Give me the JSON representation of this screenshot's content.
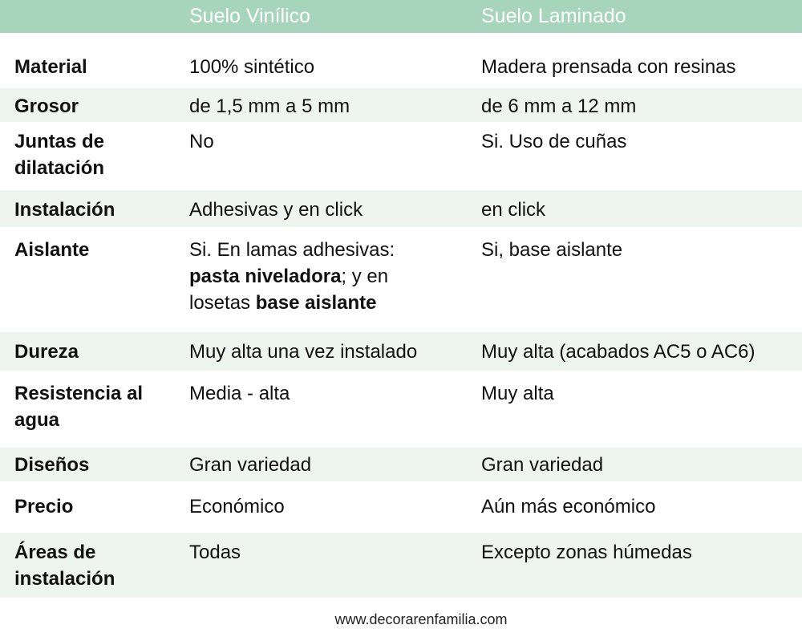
{
  "header": {
    "col1": "",
    "col2": "Suelo Vinílico",
    "col3": "Suelo Laminado"
  },
  "rows": [
    {
      "label": "Material",
      "vinilico": "100% sintético",
      "laminado": "Madera prensada con resinas"
    },
    {
      "label": "Grosor",
      "vinilico": "de 1,5 mm a 5 mm",
      "laminado": "de 6 mm a 12 mm"
    },
    {
      "label": "Juntas de dilatación",
      "vinilico": "No",
      "laminado": "Si. Uso de cuñas"
    },
    {
      "label": "Instalación",
      "vinilico": "Adhesivas y en click",
      "laminado": "en click"
    },
    {
      "label": "Aislante",
      "vinilico_parts": [
        "Si. En lamas adhesivas: ",
        "pasta niveladora",
        "; y en losetas ",
        "base aislante"
      ],
      "laminado": "Si, base aislante"
    },
    {
      "label": "Dureza",
      "vinilico": "Muy alta una vez instalado",
      "laminado": "Muy alta (acabados AC5 o AC6)"
    },
    {
      "label": "Resistencia al agua",
      "vinilico": "Media - alta",
      "laminado": "Muy alta"
    },
    {
      "label": "Diseños",
      "vinilico": "Gran variedad",
      "laminado": "Gran variedad"
    },
    {
      "label": "Precio",
      "vinilico": "Económico",
      "laminado": "Aún más económico"
    },
    {
      "label": "Áreas de instalación",
      "vinilico": "Todas",
      "laminado": "Excepto zonas húmedas"
    }
  ],
  "footer": "www.decorarenfamilia.com",
  "colors": {
    "header": "#a6d5bc",
    "stripe": "#eef5f0"
  }
}
